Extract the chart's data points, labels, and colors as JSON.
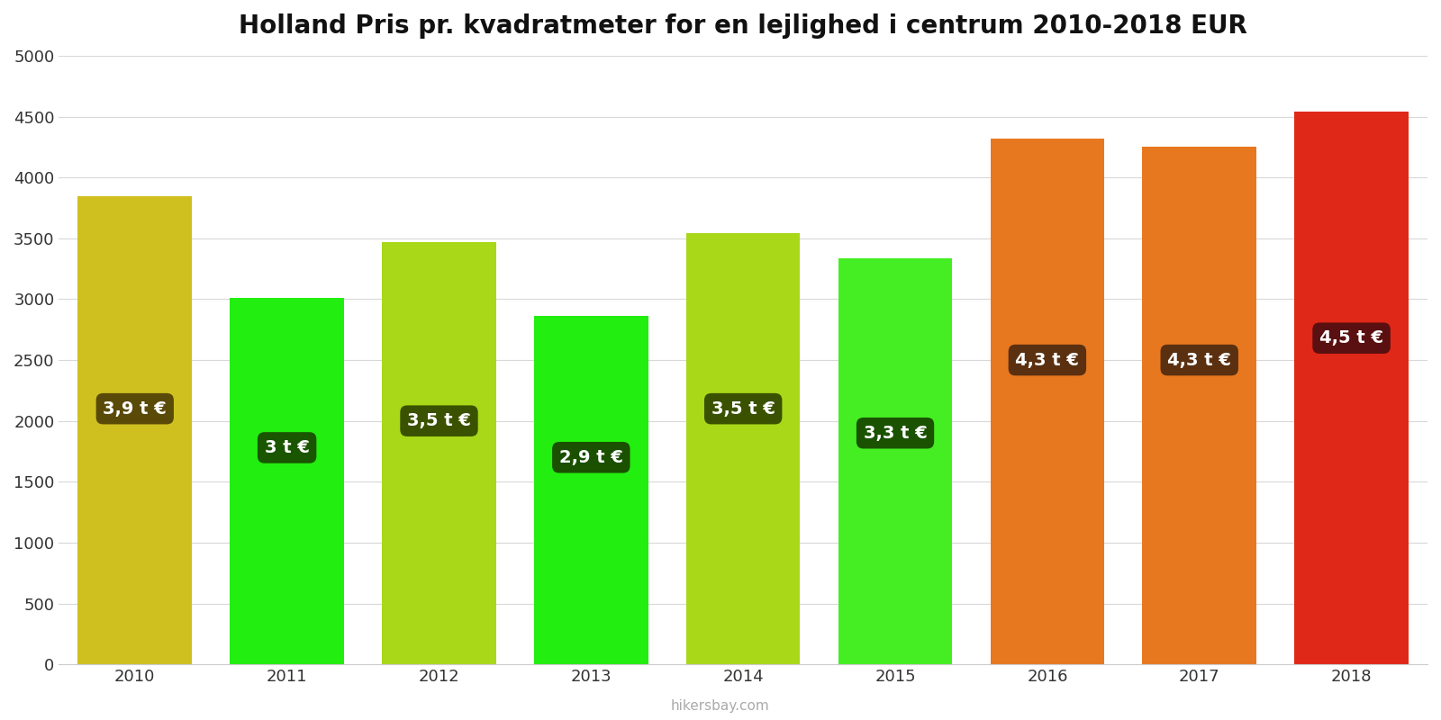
{
  "title": "Holland Pris pr. kvadratmeter for en lejlighed i centrum 2010-2018 EUR",
  "years": [
    2010,
    2011,
    2012,
    2013,
    2014,
    2015,
    2016,
    2017,
    2018
  ],
  "values": [
    3850,
    3010,
    3470,
    2860,
    3540,
    3335,
    4320,
    4250,
    4545
  ],
  "bar_colors": [
    "#cfc020",
    "#22ee10",
    "#a8d818",
    "#22ee10",
    "#a8d818",
    "#44ee22",
    "#e87820",
    "#e87820",
    "#e02818"
  ],
  "label_texts": [
    "3,9 t €",
    "3 t €",
    "3,5 t €",
    "2,9 t €",
    "3,5 t €",
    "3,3 t €",
    "4,3 t €",
    "4,3 t €",
    "4,5 t €"
  ],
  "label_box_colors": [
    "#5a4a08",
    "#1a5500",
    "#3a5200",
    "#1a5000",
    "#3a5200",
    "#1a5200",
    "#5a3010",
    "#5a3010",
    "#5a1010"
  ],
  "label_y_positions": [
    2100,
    1780,
    2000,
    1700,
    2100,
    1900,
    2500,
    2500,
    2680
  ],
  "ylim": [
    0,
    5000
  ],
  "yticks": [
    0,
    500,
    1000,
    1500,
    2000,
    2500,
    3000,
    3500,
    4000,
    4500,
    5000
  ],
  "watermark": "hikersbay.com",
  "bg_color": "#ffffff",
  "grid_color": "#d8d8d8",
  "title_fontsize": 20,
  "bar_width": 0.75
}
